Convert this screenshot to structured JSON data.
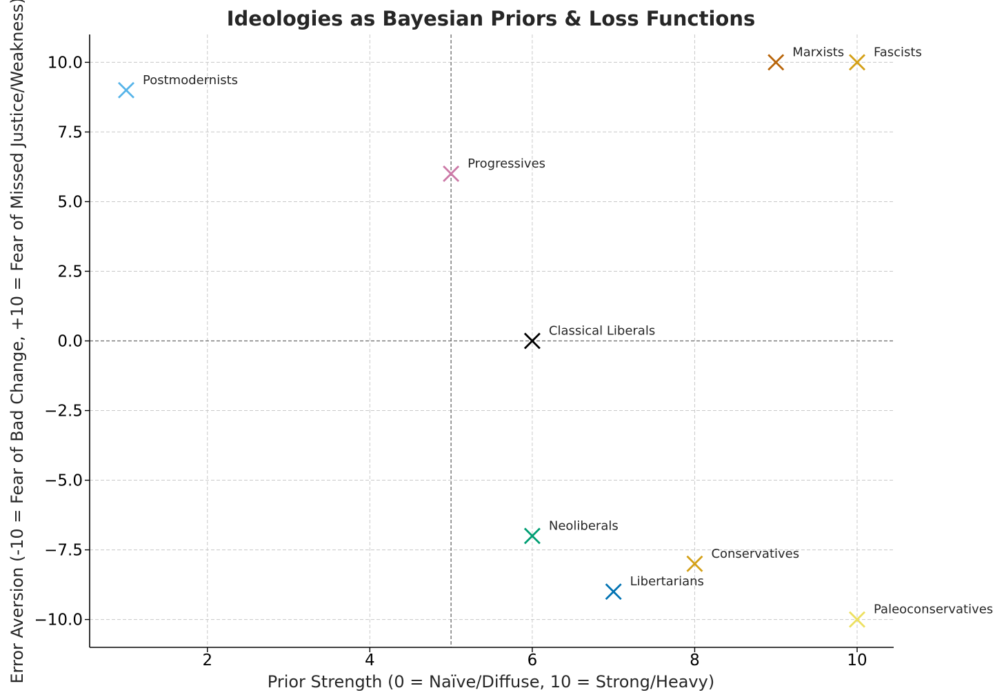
{
  "chart_data": {
    "type": "scatter",
    "title": "Ideologies as Bayesian Priors & Loss Functions",
    "xlabel": "Prior Strength (0 = Naïve/Diffuse, 10 = Strong/Heavy)",
    "ylabel": "Error Aversion (-10 = Fear of Bad Change, +10 = Fear of Missed Justice/Weakness)",
    "xlim": [
      0.55,
      10.45
    ],
    "ylim": [
      -11,
      11
    ],
    "x_ticks": [
      2,
      4,
      6,
      8,
      10
    ],
    "x_tick_labels": [
      "2",
      "4",
      "6",
      "8",
      "10"
    ],
    "y_ticks": [
      10,
      7.5,
      5,
      2.5,
      0,
      -2.5,
      -5,
      -7.5,
      -10
    ],
    "y_tick_labels": [
      "10.0",
      "7.5",
      "5.0",
      "2.5",
      "0.0",
      "−2.5",
      "−5.0",
      "−7.5",
      "−10.0"
    ],
    "grid": true,
    "reference_lines": {
      "x": 5,
      "y": 0
    },
    "marker": "x",
    "points": [
      {
        "label": "Postmodernists",
        "x": 1,
        "y": 9,
        "color": "#56B4E9"
      },
      {
        "label": "Progressives",
        "x": 5,
        "y": 6,
        "color": "#CC79A7"
      },
      {
        "label": "Classical Liberals",
        "x": 6,
        "y": 0,
        "color": "#000000"
      },
      {
        "label": "Neoliberals",
        "x": 6,
        "y": -7,
        "color": "#009E73"
      },
      {
        "label": "Libertarians",
        "x": 7,
        "y": -9,
        "color": "#0072B2"
      },
      {
        "label": "Conservatives",
        "x": 8,
        "y": -8,
        "color": "#D4A017"
      },
      {
        "label": "Marxists",
        "x": 9,
        "y": 10,
        "color": "#B8650A"
      },
      {
        "label": "Fascists",
        "x": 10,
        "y": 10,
        "color": "#D4A017"
      },
      {
        "label": "Paleoconservatives",
        "x": 10,
        "y": -10,
        "color": "#EDE060"
      }
    ]
  }
}
